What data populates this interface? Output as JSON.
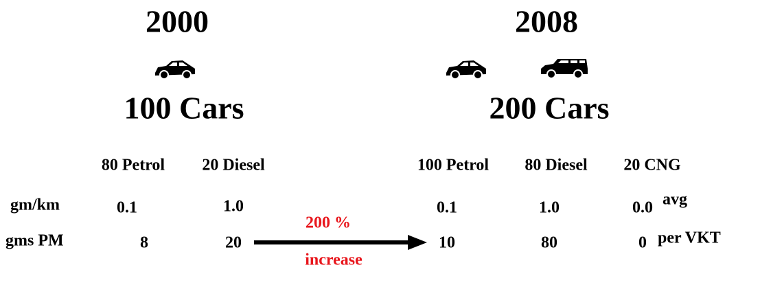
{
  "panels": [
    {
      "year": "2000",
      "count": "100 Cars",
      "fuels": [
        "80 Petrol",
        "20 Diesel"
      ],
      "gm_km": [
        "0.1",
        "1.0"
      ],
      "gms_pm": [
        "8",
        "20"
      ]
    },
    {
      "year": "2008",
      "count": "200 Cars",
      "fuels": [
        "100 Petrol",
        "80 Diesel",
        "20 CNG"
      ],
      "gm_km": [
        "0.1",
        "1.0",
        "0.0"
      ],
      "gms_pm": [
        "10",
        "80",
        "0"
      ]
    }
  ],
  "row_labels": {
    "gm_km": "gm/km",
    "gms_pm": "gms PM"
  },
  "units": {
    "avg": "avg",
    "per_vkt": "per VKT"
  },
  "change": {
    "amount": "200 %",
    "label": "increase"
  }
}
